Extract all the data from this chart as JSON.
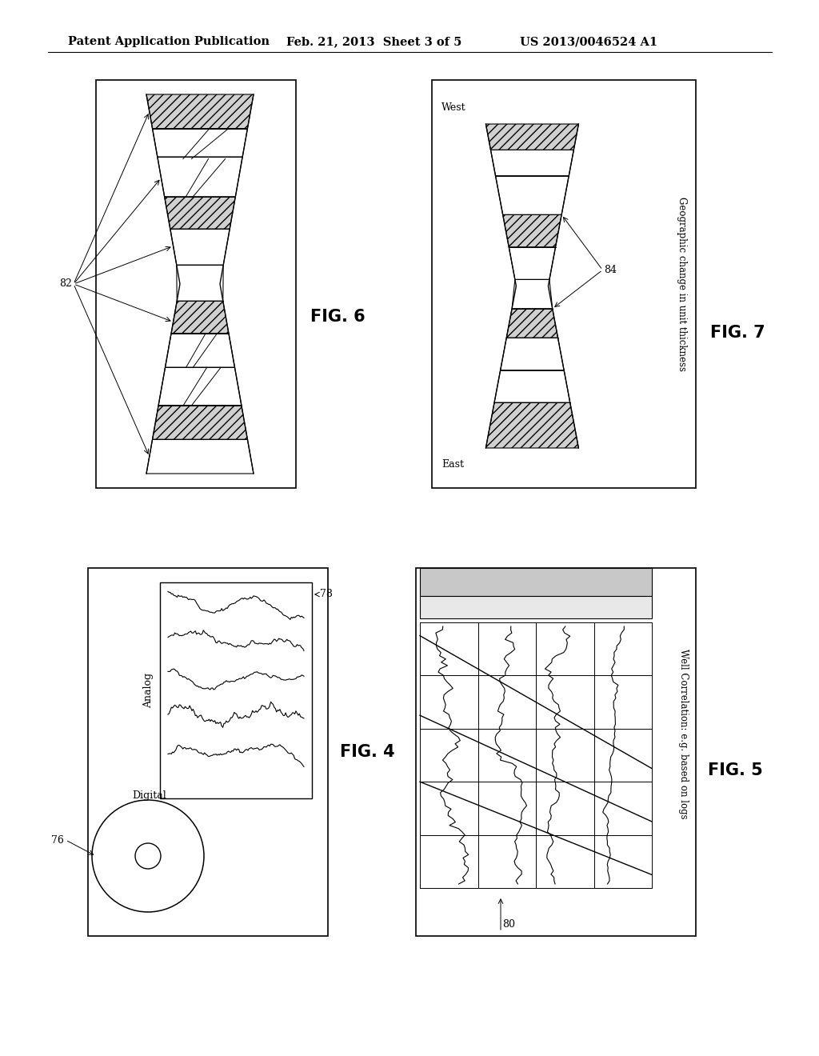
{
  "bg_color": "#ffffff",
  "header_text": "Patent Application Publication",
  "header_date": "Feb. 21, 2013  Sheet 3 of 5",
  "header_patent": "US 2013/0046524 A1",
  "header_fontsize": 11,
  "fig4_label": "FIG. 4",
  "fig5_label": "FIG. 5",
  "fig6_label": "FIG. 6",
  "fig7_label": "FIG. 7",
  "label_82": "82",
  "label_84": "84",
  "label_76": "76",
  "label_78": "78",
  "label_80": "80"
}
